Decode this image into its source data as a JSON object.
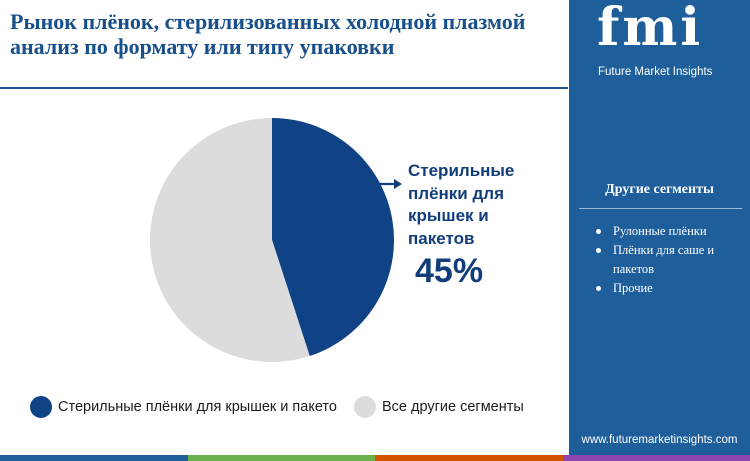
{
  "header": {
    "title_line1": "Рынок плёнок, стерилизованных холодной плазмой",
    "title_line2": "анализ по формату или типу упаковки"
  },
  "chart_data": {
    "type": "pie",
    "slices": [
      {
        "label": "Стерильные плёнки для крышек и пакетов",
        "value": 45,
        "color": "#0f4386"
      },
      {
        "label": "Все другие сегменты",
        "value": 55,
        "color": "#dcdcdc"
      }
    ],
    "callout": {
      "label": "Стерильные плёнки для крышек и пакетов",
      "value_text": "45%"
    },
    "legend": {
      "position": "bottom",
      "items": [
        {
          "label": "Стерильные плёнки для крышек и пакето",
          "color": "#0f4386"
        },
        {
          "label": "Все другие сегменты",
          "color": "#dcdcdc"
        }
      ]
    }
  },
  "sidebar": {
    "logo_text": "fmi",
    "logo_subtitle": "Future Market Insights",
    "segments_title": "Другие сегменты",
    "segments": [
      "Рулонные плёнки",
      "Плёнки для саше и пакетов",
      "Прочие"
    ],
    "website": "www.futuremarketinsights.com"
  },
  "footer": {
    "bar_colors": [
      "#1d5e9b",
      "#6ab04c",
      "#d35400",
      "#8e44ad"
    ]
  }
}
